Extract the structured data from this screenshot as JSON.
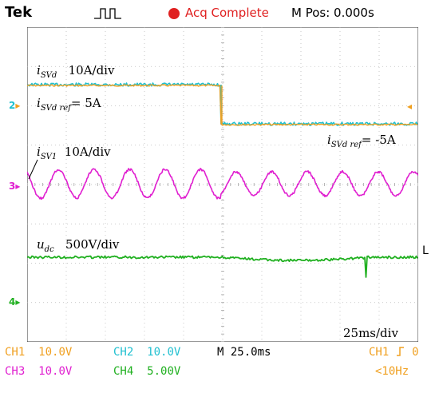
{
  "header": {
    "brand": "Tek",
    "trigger_icon": "trigger-state-icon",
    "record_icon": "red-dot-icon",
    "status": "Acq Complete",
    "position": "M Pos: 0.000s",
    "status_color": "#e02020"
  },
  "annotations": {
    "isvd_main": "i",
    "isvd_sub": "SVd",
    "isvd_scale": "10A/div",
    "isvd_ref_pos_main": "i",
    "isvd_ref_pos_sub": "SVd ref",
    "isvd_ref_pos_val": "= 5A",
    "isvd_ref_neg_main": "i",
    "isvd_ref_neg_sub": "SVd ref",
    "isvd_ref_neg_val": "= -5A",
    "isv1_main": "i",
    "isv1_sub": "SV1",
    "isv1_scale": "10A/div",
    "udc_main": "u",
    "udc_sub": "dc",
    "udc_scale": "500V/div",
    "timebase": "25ms/div"
  },
  "markers": {
    "ch2": "2",
    "ch3": "3",
    "ch4": "4",
    "level": "L"
  },
  "channels": [
    {
      "label": "CH1",
      "value": "10.0V",
      "color": "#f0a020"
    },
    {
      "label": "CH2",
      "value": "10.0V",
      "color": "#20c0d0"
    },
    {
      "label": "CH3",
      "value": "10.0V",
      "color": "#e020d0"
    },
    {
      "label": "CH4",
      "value": "5.00V",
      "color": "#20b020"
    }
  ],
  "bottom": {
    "main_time": "M 25.0ms",
    "trigger_ch": "CH1",
    "trigger_val": "0",
    "freq": "<10Hz"
  },
  "traces": {
    "ch1_color": "#f0a020",
    "ch2_color": "#20c0d0",
    "ch3_color": "#e020d0",
    "ch4_color": "#20b020"
  }
}
